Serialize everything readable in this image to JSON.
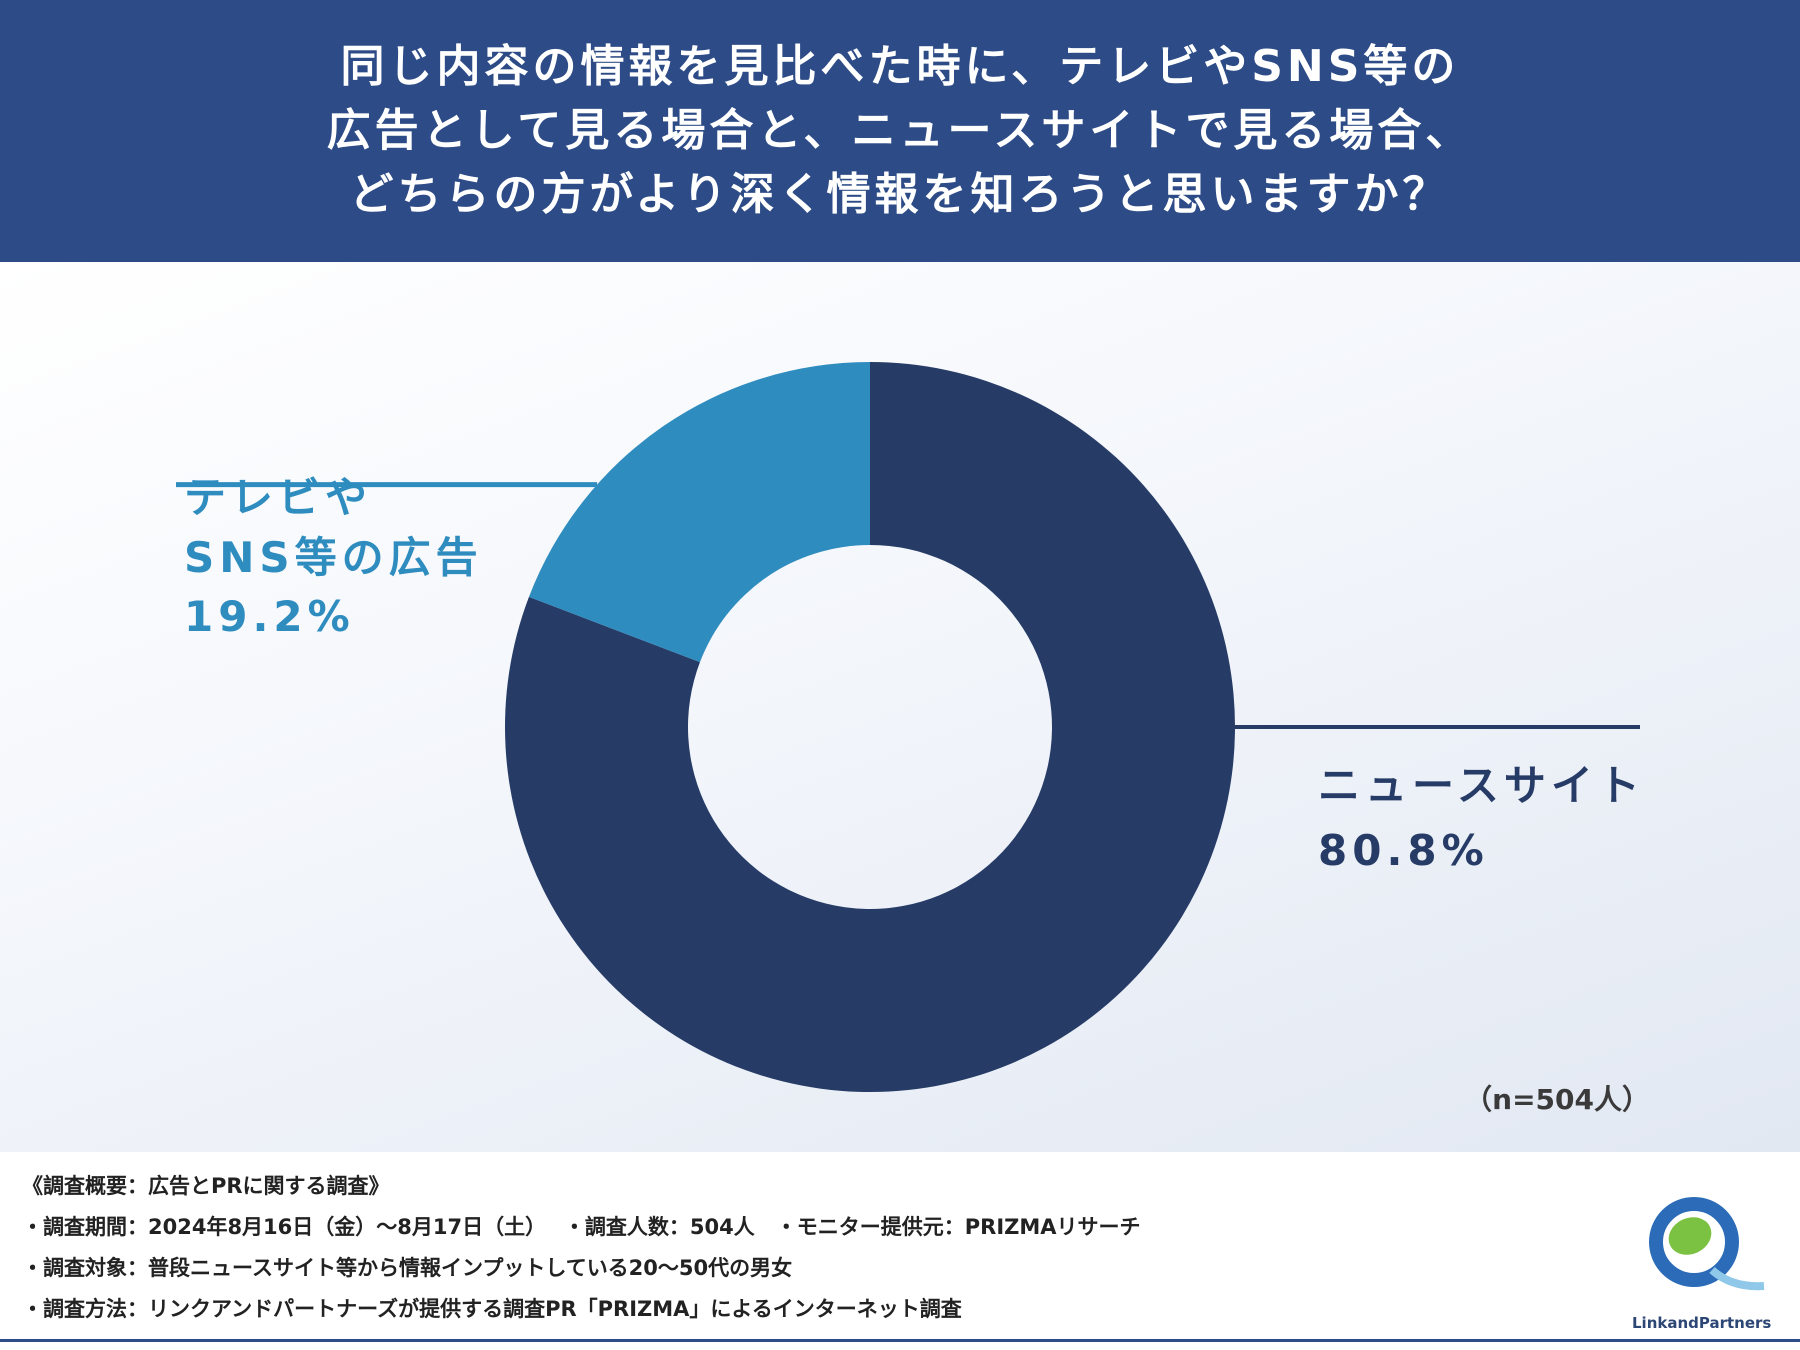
{
  "header": {
    "title": "同じ内容の情報を見比べた時に、テレビやSNS等の\n広告として見る場合と、ニュースサイトで見る場合、\nどちらの方がより深く情報を知ろうと思いますか？"
  },
  "chart_data": {
    "type": "pie",
    "subtype": "donut",
    "title": "同じ内容の情報を見比べた時に、テレビやSNS等の広告として見る場合と、ニュースサイトで見る場合、どちらの方がより深く情報を知ろうと思いますか？",
    "slices": [
      {
        "label": "ニュースサイト",
        "value": 80.8,
        "display": "80.8%",
        "color": "#263c67"
      },
      {
        "label": "テレビや\nSNS等の広告",
        "value": 19.2,
        "display": "19.2%",
        "color": "#2e8cbf"
      }
    ],
    "start_angle_deg": 0,
    "direction": "clockwise",
    "sample_note": "（n=504人）"
  },
  "survey": {
    "heading": "《調査概要：広告とPRに関する調査》",
    "lines": [
      "・調査期間：2024年8月16日（金）〜8月17日（土）　 ・調査人数：504人　・モニター提供元：PRIZMAリサーチ",
      "・調査対象：普段ニュースサイト等から情報インプットしている20〜50代の男女",
      "・調査方法：リンクアンドパートナーズが提供する調査PR「PRIZMA」によるインターネット調査"
    ]
  },
  "logo": {
    "text": "LinkandPartners",
    "colors": {
      "green": "#7cc242",
      "blue": "#2b6bb8",
      "light": "#8fc8e8"
    }
  }
}
